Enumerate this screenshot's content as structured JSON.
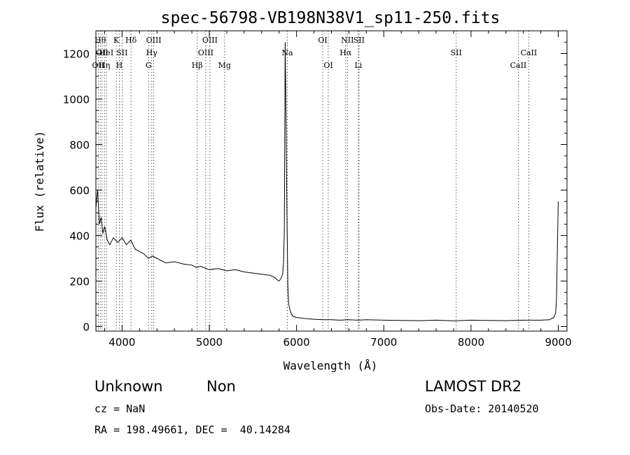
{
  "chart_data": {
    "type": "line",
    "title": "spec-56798-VB198N38V1_sp11-250.fits",
    "xlabel": "Wavelength (Å)",
    "ylabel": "Flux (relative)",
    "xlim": [
      3700,
      9100
    ],
    "ylim": [
      -20,
      1300
    ],
    "xticks": [
      4000,
      5000,
      6000,
      7000,
      8000,
      9000
    ],
    "xtick_labels": [
      "4000",
      "5000",
      "6000",
      "7000",
      "8000",
      "9000"
    ],
    "yticks": [
      0,
      200,
      400,
      600,
      800,
      1000,
      1200
    ],
    "ytick_labels": [
      "0",
      "200",
      "400",
      "600",
      "800",
      "1000",
      "1200"
    ],
    "grid": false,
    "series": [
      {
        "x": [
          3700,
          3720,
          3740,
          3760,
          3780,
          3800,
          3830,
          3860,
          3900,
          3950,
          4000,
          4050,
          4100,
          4150,
          4200,
          4250,
          4300,
          4350,
          4400,
          4450,
          4500,
          4600,
          4700,
          4800,
          4850,
          4900,
          5000,
          5100,
          5200,
          5300,
          5400,
          5500,
          5600,
          5700,
          5750,
          5780,
          5800,
          5820,
          5840,
          5850,
          5860,
          5870,
          5880,
          5890,
          5900,
          5910,
          5920,
          5940,
          5960,
          6000,
          6100,
          6200,
          6300,
          6400,
          6500,
          6600,
          6700,
          6800,
          7000,
          7200,
          7400,
          7600,
          7800,
          8000,
          8200,
          8400,
          8600,
          8800,
          8900,
          8950,
          8970,
          8980,
          8990,
          9000
        ],
        "y": [
          520,
          600,
          450,
          480,
          410,
          440,
          380,
          360,
          390,
          370,
          390,
          360,
          380,
          340,
          330,
          320,
          300,
          310,
          300,
          290,
          280,
          285,
          275,
          270,
          260,
          265,
          250,
          255,
          245,
          250,
          240,
          235,
          230,
          225,
          215,
          205,
          200,
          210,
          230,
          280,
          420,
          1250,
          900,
          500,
          180,
          100,
          80,
          55,
          45,
          40,
          35,
          32,
          30,
          30,
          28,
          30,
          28,
          30,
          28,
          27,
          26,
          28,
          25,
          28,
          27,
          26,
          28,
          28,
          30,
          40,
          60,
          120,
          350,
          550
        ]
      }
    ],
    "lines": [
      {
        "x": 3727,
        "label": "OII",
        "row": 2
      },
      {
        "x": 3750,
        "label": "Hθ",
        "row": 0
      },
      {
        "x": 3771,
        "label": "OII",
        "row": 1
      },
      {
        "x": 3798,
        "label": "Hη",
        "row": 2
      },
      {
        "x": 3820,
        "label": "HeI",
        "row": 1
      },
      {
        "x": 3934,
        "label": "K",
        "row": 0
      },
      {
        "x": 3968,
        "label": "H",
        "row": 2
      },
      {
        "x": 4000,
        "label": "SII",
        "row": 1
      },
      {
        "x": 4102,
        "label": "Hδ",
        "row": 0
      },
      {
        "x": 4304,
        "label": "G",
        "row": 2
      },
      {
        "x": 4340,
        "label": "Hγ",
        "row": 1
      },
      {
        "x": 4363,
        "label": "OIII",
        "row": 0
      },
      {
        "x": 4861,
        "label": "Hβ",
        "row": 2
      },
      {
        "x": 4959,
        "label": "OIII",
        "row": 1
      },
      {
        "x": 5007,
        "label": "OIII",
        "row": 0
      },
      {
        "x": 5175,
        "label": "Mg",
        "row": 2
      },
      {
        "x": 5894,
        "label": "Na",
        "row": 1
      },
      {
        "x": 6300,
        "label": "OI",
        "row": 0
      },
      {
        "x": 6364,
        "label": "OI",
        "row": 2
      },
      {
        "x": 6563,
        "label": "Hα",
        "row": 1
      },
      {
        "x": 6583,
        "label": "NII",
        "row": 0
      },
      {
        "x": 6708,
        "label": "Li",
        "row": 2
      },
      {
        "x": 6716,
        "label": "SII",
        "row": 0
      },
      {
        "x": 7830,
        "label": "SII",
        "row": 1
      },
      {
        "x": 8542,
        "label": "CaII",
        "row": 2
      },
      {
        "x": 8662,
        "label": "CaII",
        "row": 1
      }
    ]
  },
  "info": {
    "class": "Unknown",
    "subclass": "Non",
    "survey": "LAMOST DR2",
    "cz": "cz = NaN",
    "obs_date": "Obs-Date: 20140520",
    "coords": "RA = 198.49661, DEC =  40.14284"
  }
}
